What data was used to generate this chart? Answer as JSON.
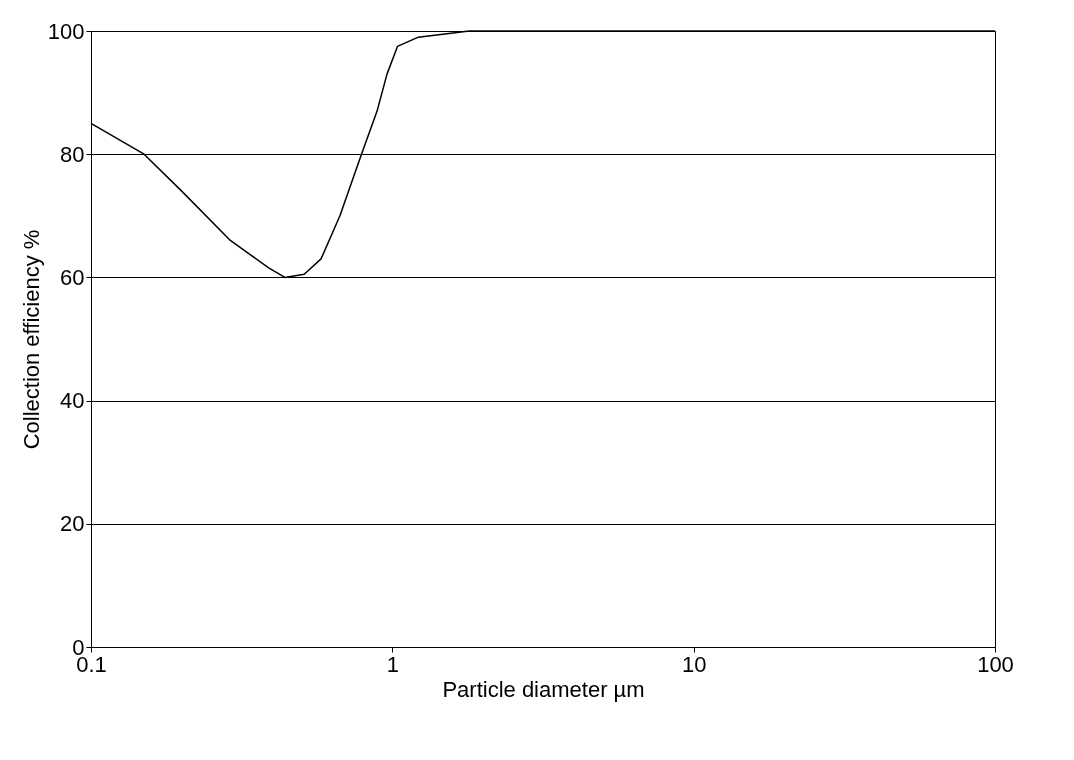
{
  "chart_data": {
    "type": "line",
    "xlabel": "Particle diameter µm",
    "ylabel": "Collection efficiency %",
    "x": [
      0.1,
      0.15,
      0.2,
      0.29,
      0.39,
      0.44,
      0.51,
      0.58,
      0.67,
      0.79,
      0.89,
      0.96,
      1.04,
      1.22,
      1.8,
      4,
      10,
      100
    ],
    "series": [
      {
        "color": "#000000",
        "values": [
          85,
          80,
          74,
          66,
          61.5,
          60,
          60.5,
          63,
          70,
          80,
          87,
          93,
          97.5,
          99,
          100,
          100,
          100,
          100
        ]
      }
    ],
    "log": "x",
    "xlim": [
      0.1,
      100
    ],
    "xticks": [
      0.1,
      1,
      10,
      100
    ],
    "ylim": [
      0,
      100
    ],
    "yticks": [
      0,
      20,
      40,
      60,
      80,
      100
    ],
    "grid": "y",
    "marker": "none",
    "line_style": "solid"
  }
}
